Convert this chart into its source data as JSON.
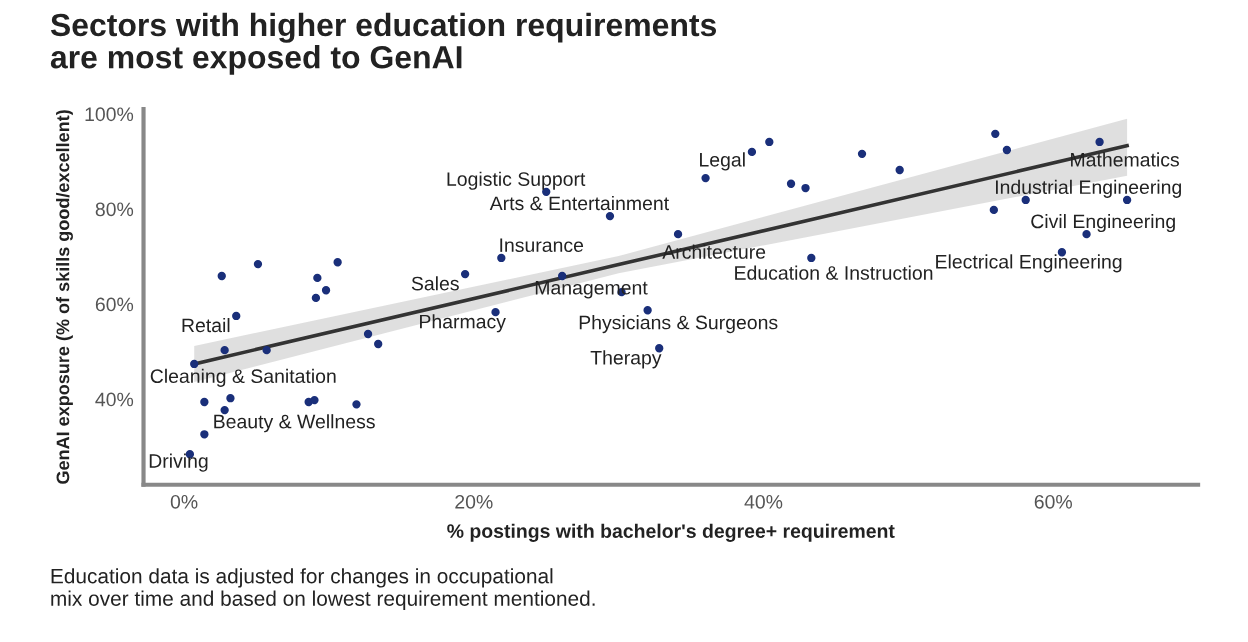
{
  "chart_data": {
    "type": "scatter",
    "title": "Sectors with higher education requirements\nare most exposed to GenAI",
    "xlabel": "% postings with bachelor's degree+ requirement",
    "ylabel": "GenAI exposure (% of skills good/excellent)",
    "xlim": [
      -2.8,
      70
    ],
    "ylim": [
      22,
      101
    ],
    "xticks": [
      {
        "value": 0,
        "label": "0%"
      },
      {
        "value": 20,
        "label": "20%"
      },
      {
        "value": 40,
        "label": "40%"
      },
      {
        "value": 60,
        "label": "60%"
      }
    ],
    "yticks": [
      {
        "value": 40,
        "label": "40%"
      },
      {
        "value": 60,
        "label": "60%"
      },
      {
        "value": 80,
        "label": "80%"
      },
      {
        "value": 100,
        "label": "100%"
      }
    ],
    "grid": false,
    "series": [
      {
        "color": "#1a2f7a",
        "marker": "circle",
        "x": [
          2.6,
          5.1,
          10.6,
          9.2,
          9.8,
          9.1,
          3.6,
          2.8,
          5.7,
          0.7,
          12.7,
          13.4,
          1.4,
          3.2,
          2.8,
          8.6,
          9.0,
          11.9,
          1.4,
          0.4,
          19.4,
          21.5,
          21.9,
          25.0,
          29.4,
          26.1,
          30.2,
          32.0,
          32.8,
          34.1,
          36.0,
          39.2,
          40.4,
          41.9,
          42.9,
          43.3,
          46.8,
          49.4,
          56.0,
          56.8,
          63.2,
          58.1,
          65.1,
          55.9,
          62.3,
          60.6
        ],
        "values": [
          65.9,
          68.4,
          68.8,
          65.5,
          62.9,
          61.3,
          57.5,
          50.3,
          50.3,
          47.4,
          53.7,
          51.6,
          39.4,
          40.2,
          37.7,
          39.4,
          39.8,
          38.9,
          32.6,
          28.4,
          66.3,
          58.3,
          69.7,
          83.6,
          78.5,
          65.9,
          62.5,
          58.7,
          50.7,
          74.7,
          86.5,
          92.0,
          94.1,
          85.3,
          84.4,
          69.7,
          91.6,
          88.2,
          95.8,
          92.4,
          94.1,
          81.9,
          81.9,
          79.8,
          74.7,
          70.9
        ]
      },
      {
        "type": "line",
        "color": "#333333",
        "x": [
          0.7,
          30,
          65.1
        ],
        "values": [
          47.4,
          68.3,
          93.3
        ],
        "lower": [
          43.6,
          66.5,
          87.0
        ],
        "upper": [
          51.2,
          70.1,
          99.0
        ]
      }
    ],
    "annotations": [
      {
        "text": "Retail",
        "x": 3.6,
        "y": 57.5
      },
      {
        "text": "Cleaning & Sanitation",
        "x": 0.7,
        "y": 47.4
      },
      {
        "text": "Beauty & Wellness",
        "x": 1.4,
        "y": 32.6
      },
      {
        "text": "Driving",
        "x": 0.4,
        "y": 28.4
      },
      {
        "text": "Sales",
        "x": 19.4,
        "y": 66.3
      },
      {
        "text": "Pharmacy",
        "x": 21.5,
        "y": 58.3
      },
      {
        "text": "Insurance",
        "x": 21.9,
        "y": 69.7
      },
      {
        "text": "Logistic Support",
        "x": 25.0,
        "y": 83.6
      },
      {
        "text": "Arts & Entertainment",
        "x": 29.4,
        "y": 78.5
      },
      {
        "text": "Management",
        "x": 30.2,
        "y": 62.5
      },
      {
        "text": "Physicians & Surgeons",
        "x": 32.0,
        "y": 58.7
      },
      {
        "text": "Therapy",
        "x": 32.8,
        "y": 50.7
      },
      {
        "text": "Architecture",
        "x": 34.1,
        "y": 74.7
      },
      {
        "text": "Legal",
        "x": 36.0,
        "y": 86.5
      },
      {
        "text": "Education & Instruction",
        "x": 43.3,
        "y": 69.7
      },
      {
        "text": "Mathematics",
        "x": 63.2,
        "y": 94.1
      },
      {
        "text": "Industrial Engineering",
        "x": 65.1,
        "y": 81.9
      },
      {
        "text": "Civil Engineering",
        "x": 62.3,
        "y": 74.7
      },
      {
        "text": "Electrical Engineering",
        "x": 60.6,
        "y": 70.9
      },
      "Education data is adjusted for changes in occupational\nmix over time and based on lowest requirement mentioned."
    ]
  }
}
